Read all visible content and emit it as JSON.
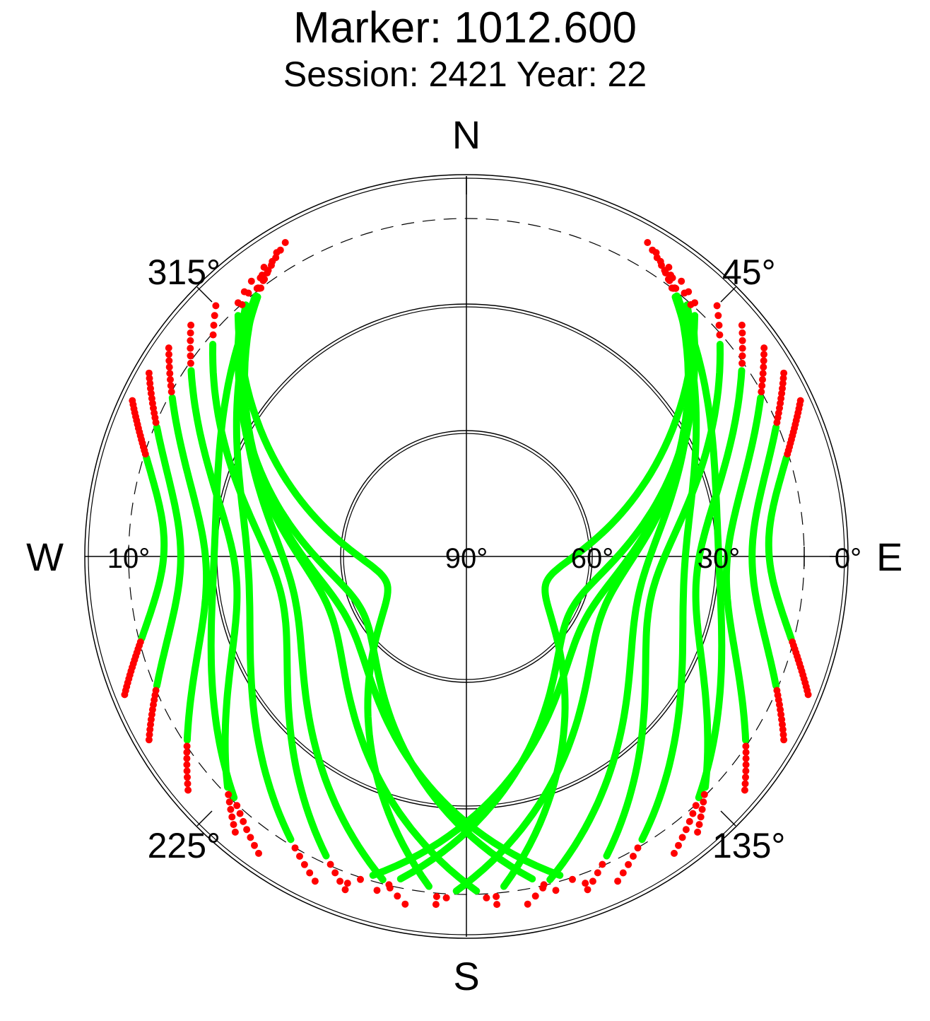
{
  "title": "Marker: 1012.600",
  "subtitle": "Session: 2421 Year: 22",
  "chart_data": {
    "type": "scatter",
    "projection": "polar-skyplot",
    "compass_labels": [
      "N",
      "E",
      "S",
      "W"
    ],
    "azimuth_labels": [
      "45°",
      "135°",
      "225°",
      "315°"
    ],
    "elevation_labels": [
      "90°",
      "60°",
      "30°",
      "0°",
      "10°"
    ],
    "elevation_circles": [
      60,
      30,
      0
    ],
    "cutoff_elevation": 10,
    "grid": true,
    "colors": {
      "above_cutoff": "#00ff00",
      "near_cutoff": "#ff0000",
      "axis": "#000000"
    },
    "tracks": [
      {
        "az0": 35,
        "az1": 170,
        "elmax": 48
      },
      {
        "az0": 32,
        "az1": 155,
        "elmax": 38
      },
      {
        "az0": 38,
        "az1": 185,
        "elmax": 55
      },
      {
        "az0": 30,
        "az1": 145,
        "elmax": 30
      },
      {
        "az0": 40,
        "az1": 195,
        "elmax": 62
      },
      {
        "az0": 42,
        "az1": 175,
        "elmax": 70
      },
      {
        "az0": 45,
        "az1": 160,
        "elmax": 45
      },
      {
        "az0": 50,
        "az1": 140,
        "elmax": 35
      },
      {
        "az0": 55,
        "az1": 130,
        "elmax": 28
      },
      {
        "az0": 60,
        "az1": 120,
        "elmax": 22
      },
      {
        "az0": 65,
        "az1": 112,
        "elmax": 18
      },
      {
        "az0": 36,
        "az1": 200,
        "elmax": 58
      },
      {
        "az0": 325,
        "az1": 190,
        "elmax": 48
      },
      {
        "az0": 328,
        "az1": 205,
        "elmax": 38
      },
      {
        "az0": 322,
        "az1": 175,
        "elmax": 55
      },
      {
        "az0": 330,
        "az1": 215,
        "elmax": 30
      },
      {
        "az0": 320,
        "az1": 165,
        "elmax": 62
      },
      {
        "az0": 318,
        "az1": 185,
        "elmax": 70
      },
      {
        "az0": 315,
        "az1": 200,
        "elmax": 45
      },
      {
        "az0": 310,
        "az1": 220,
        "elmax": 35
      },
      {
        "az0": 305,
        "az1": 230,
        "elmax": 28
      },
      {
        "az0": 300,
        "az1": 240,
        "elmax": 22
      },
      {
        "az0": 295,
        "az1": 248,
        "elmax": 18
      },
      {
        "az0": 324,
        "az1": 160,
        "elmax": 58
      }
    ]
  }
}
